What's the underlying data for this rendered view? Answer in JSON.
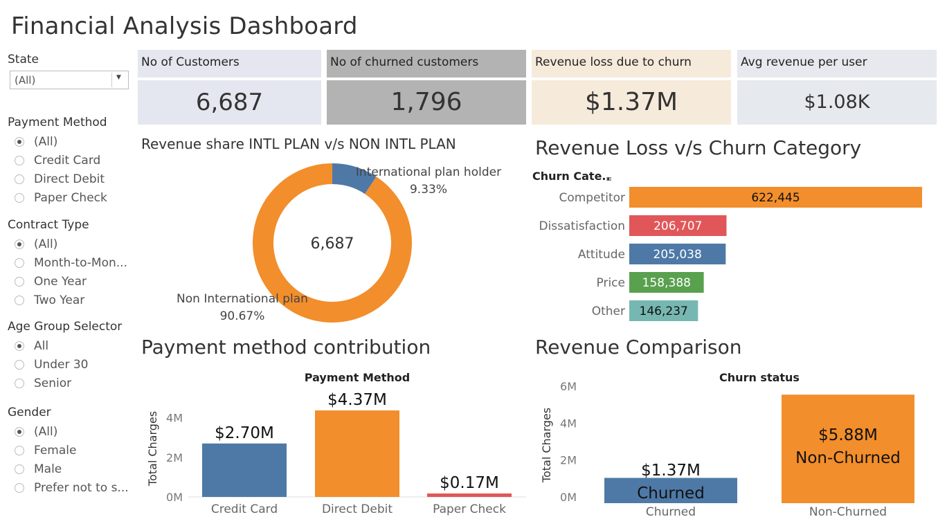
{
  "title": "Financial Analysis Dashboard",
  "filters": {
    "state": {
      "label": "State",
      "value": "(All)"
    },
    "payment_method": {
      "label": "Payment Method",
      "options": [
        "(All)",
        "Credit Card",
        "Direct Debit",
        "Paper Check"
      ],
      "selected": "(All)"
    },
    "contract_type": {
      "label": "Contract Type",
      "options": [
        "(All)",
        "Month-to-Mon...",
        "One Year",
        "Two Year"
      ],
      "selected": "(All)"
    },
    "age_group": {
      "label": "Age Group Selector",
      "options": [
        "All",
        "Under 30",
        "Senior"
      ],
      "selected": "All"
    },
    "gender": {
      "label": "Gender",
      "options": [
        "(All)",
        "Female",
        "Male",
        "Prefer not to s..."
      ],
      "selected": "(All)"
    }
  },
  "kpis": [
    {
      "label": "No of Customers",
      "value": "6,687",
      "header_color": "#e4e7ef",
      "body_color": "#e4e7ef"
    },
    {
      "label": "No of churned customers",
      "value": "1,796",
      "header_color": "#b3b3b3",
      "body_color": "#b3b3b3"
    },
    {
      "label": "Revenue loss due to churn",
      "value": "$1.37M",
      "header_color": "#f6eadb",
      "body_color": "#f6eadb"
    },
    {
      "label": "Avg revenue per user",
      "value": "$1.08K",
      "header_color": "#e6e9ed",
      "body_color": "#e6e9ed"
    }
  ],
  "colors": {
    "orange": "#f28e2b",
    "blue": "#4e79a7",
    "red": "#e15759",
    "green": "#59a14f",
    "teal": "#76b7b2"
  },
  "chart_data": [
    {
      "id": "donut",
      "type": "pie",
      "title": "Revenue share INTL PLAN v/s NON INTL PLAN",
      "center_label": "6,687",
      "slices": [
        {
          "name": "International plan holder",
          "value": 9.33,
          "label": "9.33%",
          "color": "#4e79a7"
        },
        {
          "name": "Non International plan",
          "value": 90.67,
          "label": "90.67%",
          "color": "#f28e2b"
        }
      ]
    },
    {
      "id": "churn-category",
      "type": "bar",
      "orientation": "horizontal",
      "title": "Revenue Loss v/s Churn Category",
      "ylabel": "Churn Cate..",
      "categories": [
        "Competitor",
        "Dissatisfaction",
        "Attitude",
        "Price",
        "Other"
      ],
      "values": [
        622445,
        206707,
        205038,
        158388,
        146237
      ],
      "value_labels": [
        "622,445",
        "206,707",
        "205,038",
        "158,388",
        "146,237"
      ],
      "colors": [
        "#f28e2b",
        "#e15759",
        "#4e79a7",
        "#59a14f",
        "#76b7b2"
      ],
      "xlim": [
        0,
        622445
      ]
    },
    {
      "id": "payment-method",
      "type": "bar",
      "title": "Payment method contribution",
      "xlabel": "Payment Method",
      "ylabel": "Total Charges",
      "categories": [
        "Credit Card",
        "Direct Debit",
        "Paper Check"
      ],
      "values": [
        2.7,
        4.37,
        0.17
      ],
      "value_labels": [
        "$2.70M",
        "$4.37M",
        "$0.17M"
      ],
      "colors": [
        "#4e79a7",
        "#f28e2b",
        "#e15759"
      ],
      "ylim": [
        0,
        4.37
      ],
      "yticks": [
        "0M",
        "2M",
        "4M"
      ]
    },
    {
      "id": "revenue-comparison",
      "type": "bar",
      "title": "Revenue Comparison",
      "xlabel": "Churn status",
      "ylabel": "Total Charges",
      "categories": [
        "Churned",
        "Non-Churned"
      ],
      "values": [
        1.37,
        5.88
      ],
      "value_labels": [
        "$1.37M",
        "$5.88M"
      ],
      "inner_labels": [
        "Churned",
        "Non-Churned"
      ],
      "colors": [
        "#4e79a7",
        "#f28e2b"
      ],
      "ylim": [
        0,
        6
      ],
      "yticks": [
        "0M",
        "2M",
        "4M",
        "6M"
      ]
    }
  ]
}
